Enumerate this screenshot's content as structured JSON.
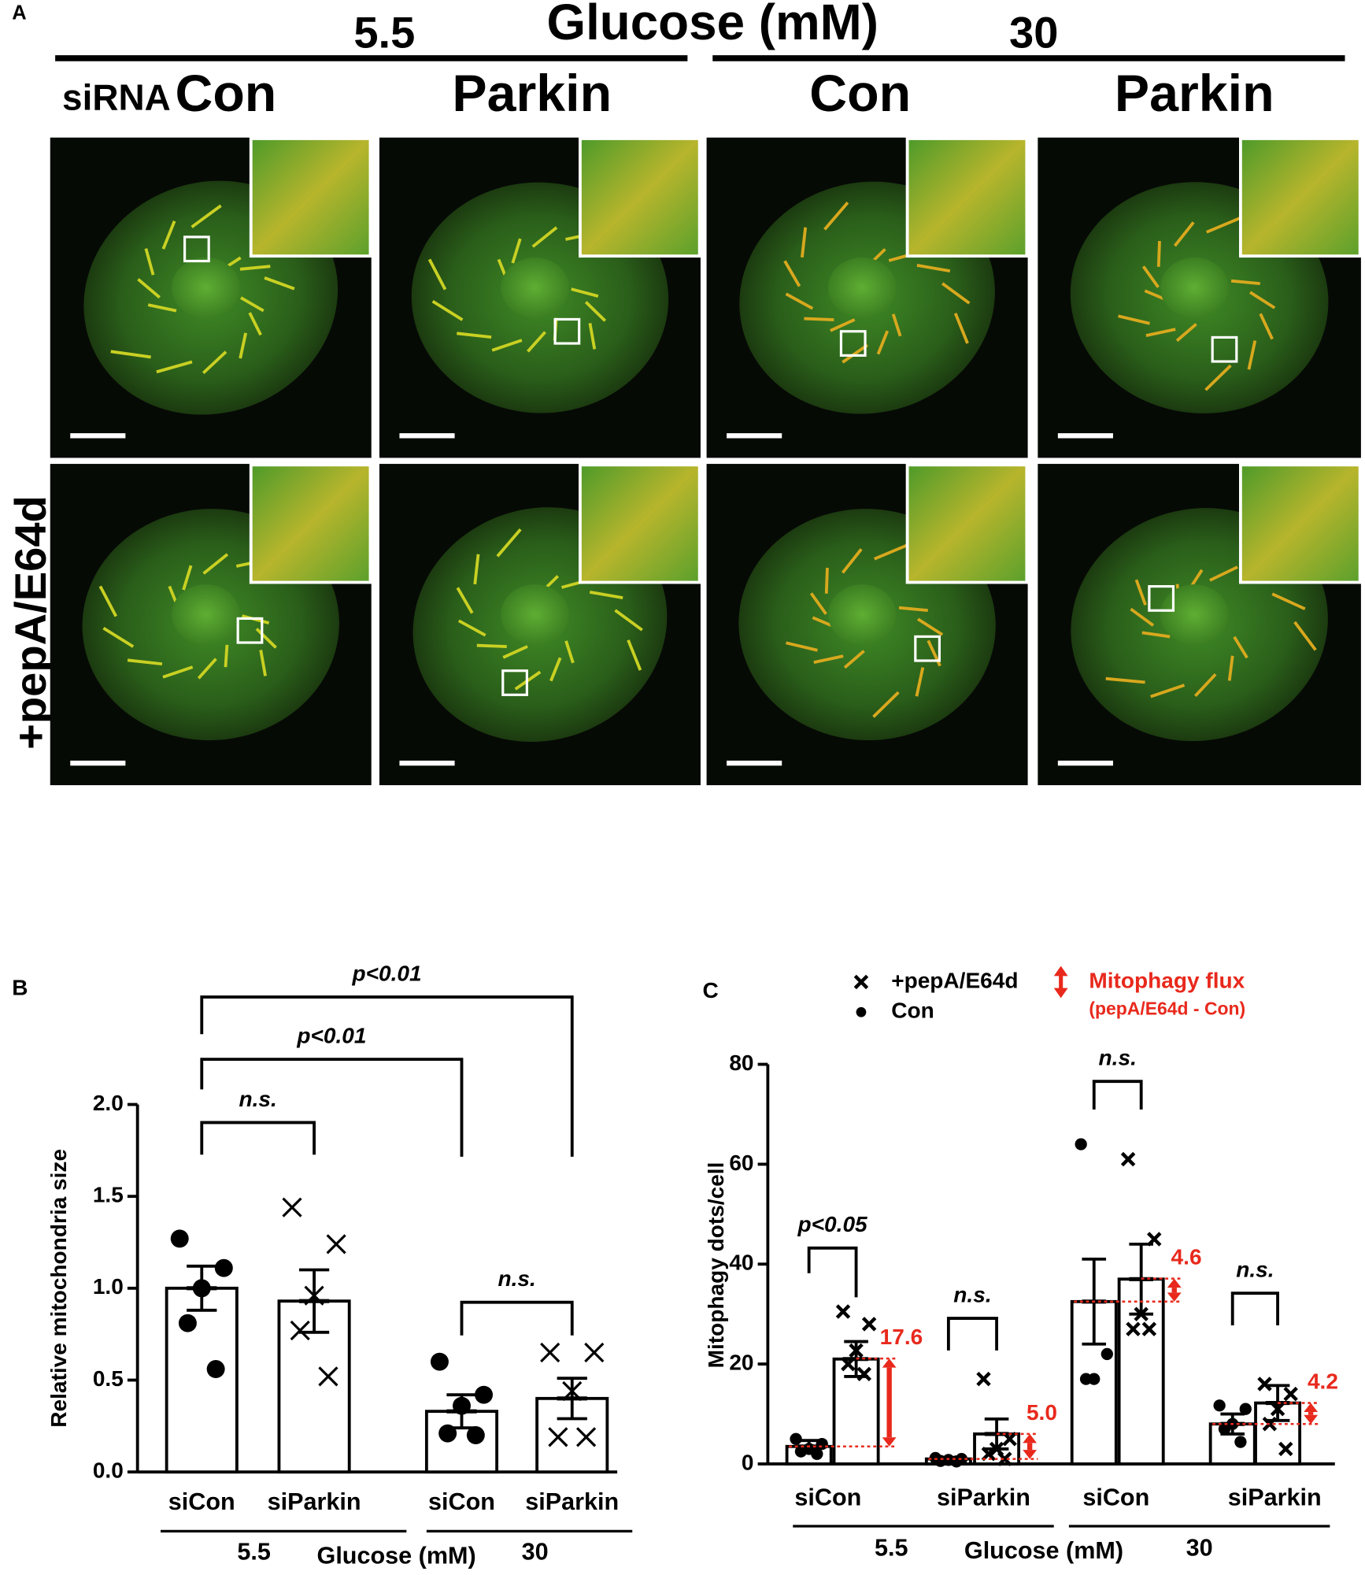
{
  "panel_a": {
    "label": "A",
    "glucose_levels": [
      "5.5",
      "30"
    ],
    "glucose_title": "Glucose (mM)",
    "row_label": "siRNA",
    "columns": [
      "Con",
      "Parkin",
      "Con",
      "Parkin"
    ],
    "treatment": "+pepA/E64d"
  },
  "chart_data": [
    {
      "type": "bar",
      "panel": "B",
      "ylabel": "Relative mitochondria size",
      "categories": [
        "siCon",
        "siParkin",
        "siCon",
        "siParkin"
      ],
      "groups": [
        "5.5",
        "30"
      ],
      "group_title": "Glucose (mM)",
      "values": [
        1.0,
        0.93,
        0.33,
        0.4
      ],
      "errors": [
        0.12,
        0.17,
        0.09,
        0.11
      ],
      "points": [
        [
          1.27,
          1.11,
          1.0,
          0.81,
          0.56
        ],
        [
          1.44,
          1.24,
          0.96,
          0.77,
          0.52
        ],
        [
          0.6,
          0.42,
          0.36,
          0.21,
          0.2
        ],
        [
          0.65,
          0.65,
          0.44,
          0.19,
          0.19
        ]
      ],
      "markers": [
        "dot",
        "x",
        "dot",
        "x"
      ],
      "color": "#000000",
      "ylim": [
        0,
        2
      ],
      "yticks": [
        {
          "value": 0,
          "label": "0.0"
        },
        0.5,
        {
          "value": 1,
          "label": "1.0"
        },
        1.5,
        {
          "value": 2,
          "label": "2.0"
        }
      ],
      "annotations": [
        "n.s.",
        "p<0.01",
        "p<0.01",
        "n.s."
      ]
    },
    {
      "type": "bar",
      "panel": "C",
      "ylabel": "Mitophagy dots/cell",
      "categories": [
        "siCon",
        "siParkin",
        "siCon",
        "siParkin"
      ],
      "groups": [
        "5.5",
        "30"
      ],
      "group_title": "Glucose (mM)",
      "series": [
        {
          "name": "Con",
          "marker": "dot",
          "color": "#000000",
          "values": [
            3.5,
            1.0,
            32.5,
            8.0
          ],
          "errors": [
            1.2,
            0.3,
            8.5,
            2.0
          ],
          "points": [
            [
              5,
              4,
              3,
              2.5,
              2
            ],
            [
              1.2,
              1,
              0.8,
              0.6,
              0.5
            ],
            [
              64,
              22,
              17,
              17
            ],
            [
              11.7,
              11,
              8,
              7,
              4.4
            ]
          ]
        },
        {
          "name": "+pepA/E64d",
          "marker": "x",
          "color": "#000000",
          "values": [
            21.0,
            6.0,
            37.0,
            12.2
          ],
          "errors": [
            3.5,
            3.0,
            7.0,
            3.5
          ],
          "points": [
            [
              30.5,
              28,
              22.7,
              20,
              18
            ],
            [
              17,
              5,
              3,
              2,
              1
            ],
            [
              61,
              45,
              30,
              27,
              27
            ],
            [
              16,
              14,
              11,
              8,
              3
            ]
          ]
        }
      ],
      "flux": {
        "label": "Mitophagy flux",
        "note": "(pepA/E64d - Con)",
        "color": "#e8291c",
        "values": [
          17.6,
          5,
          4.6,
          4.2
        ],
        "value_labels": [
          "17.6",
          "5.0",
          "4.6",
          "4.2"
        ]
      },
      "ylim": [
        0,
        80
      ],
      "yticks": [
        0,
        20,
        40,
        60,
        80
      ],
      "annotations": [
        "p<0.05",
        "n.s.",
        "n.s.",
        "n.s."
      ]
    }
  ]
}
